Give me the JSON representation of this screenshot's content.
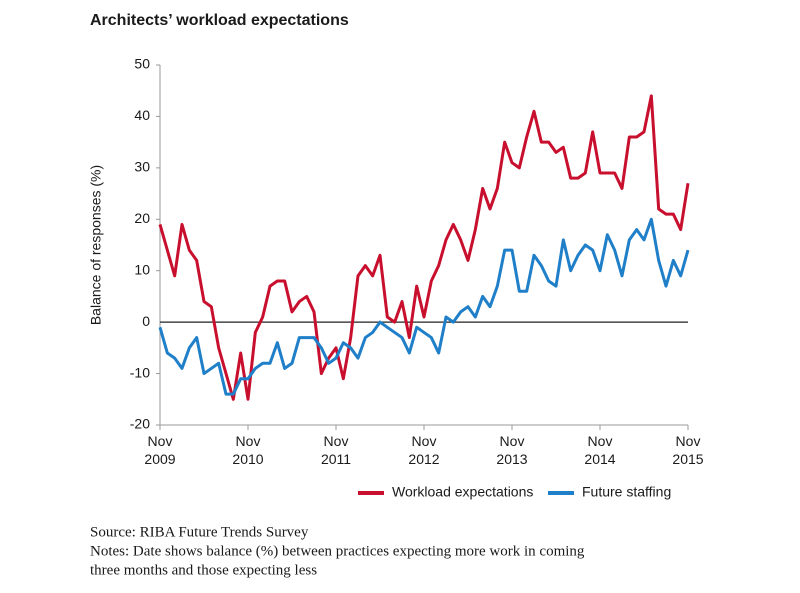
{
  "chart_data": {
    "type": "line",
    "title": "Architects’ workload expectations",
    "y_label": "Balance of responses (%)",
    "x": [
      "2009-11",
      "2009-12",
      "2010-01",
      "2010-02",
      "2010-03",
      "2010-04",
      "2010-05",
      "2010-06",
      "2010-07",
      "2010-08",
      "2010-09",
      "2010-10",
      "2010-11",
      "2010-12",
      "2011-01",
      "2011-02",
      "2011-03",
      "2011-04",
      "2011-05",
      "2011-06",
      "2011-07",
      "2011-08",
      "2011-09",
      "2011-10",
      "2011-11",
      "2011-12",
      "2012-01",
      "2012-02",
      "2012-03",
      "2012-04",
      "2012-05",
      "2012-06",
      "2012-07",
      "2012-08",
      "2012-09",
      "2012-10",
      "2012-11",
      "2012-12",
      "2013-01",
      "2013-02",
      "2013-03",
      "2013-04",
      "2013-05",
      "2013-06",
      "2013-07",
      "2013-08",
      "2013-09",
      "2013-10",
      "2013-11",
      "2013-12",
      "2014-01",
      "2014-02",
      "2014-03",
      "2014-04",
      "2014-05",
      "2014-06",
      "2014-07",
      "2014-08",
      "2014-09",
      "2014-10",
      "2014-11",
      "2014-12",
      "2015-01",
      "2015-02",
      "2015-03",
      "2015-04",
      "2015-05",
      "2015-06",
      "2015-07",
      "2015-08",
      "2015-09",
      "2015-10",
      "2015-11"
    ],
    "series": [
      {
        "name": "Workload expectations",
        "color": "#c8102e",
        "values": [
          19,
          14,
          9,
          19,
          14,
          12,
          4,
          3,
          -5,
          -10,
          -15,
          -6,
          -15,
          -2,
          1,
          7,
          8,
          8,
          2,
          4,
          5,
          2,
          -10,
          -7,
          -5,
          -11,
          -3,
          9,
          11,
          9,
          13,
          1,
          0,
          4,
          -3,
          7,
          1,
          8,
          11,
          16,
          19,
          16,
          12,
          18,
          26,
          22,
          26,
          35,
          31,
          30,
          36,
          41,
          35,
          35,
          33,
          34,
          28,
          28,
          29,
          37,
          29,
          29,
          29,
          26,
          36,
          36,
          37,
          44,
          22,
          21,
          21,
          18,
          27
        ]
      },
      {
        "name": "Future staffing",
        "color": "#1f7fc8",
        "values": [
          -1,
          -6,
          -7,
          -9,
          -5,
          -3,
          -10,
          -9,
          -8,
          -14,
          -14,
          -11,
          -11,
          -9,
          -8,
          -8,
          -4,
          -9,
          -8,
          -3,
          -3,
          -3,
          -5,
          -8,
          -7,
          -4,
          -5,
          -7,
          -3,
          -2,
          0,
          -1,
          -2,
          -3,
          -6,
          -1,
          -2,
          -3,
          -6,
          1,
          0,
          2,
          3,
          1,
          5,
          3,
          7,
          14,
          14,
          6,
          6,
          13,
          11,
          8,
          7,
          16,
          10,
          13,
          15,
          14,
          10,
          17,
          14,
          9,
          16,
          18,
          16,
          20,
          12,
          7,
          12,
          9,
          14
        ]
      }
    ],
    "xlim": [
      "2009-11",
      "2015-11"
    ],
    "xticks": [
      {
        "value": "2009-11",
        "label": "Nov 2009"
      },
      {
        "value": "2010-11",
        "label": "Nov 2010"
      },
      {
        "value": "2011-11",
        "label": "Nov 2011"
      },
      {
        "value": "2012-11",
        "label": "Nov 2012"
      },
      {
        "value": "2013-11",
        "label": "Nov 2013"
      },
      {
        "value": "2014-11",
        "label": "Nov 2014"
      },
      {
        "value": "2015-11",
        "label": "Nov 2015"
      }
    ],
    "ylim": [
      -20,
      50
    ],
    "yticks": [
      -20,
      -10,
      0,
      10,
      20,
      30,
      40,
      50
    ],
    "legend": "bottom",
    "notes": [
      "Source: RIBA Future Trends Survey",
      "Notes: Date shows  balance (%) between practices expecting more work in coming",
      "three months and those expecting less"
    ]
  }
}
